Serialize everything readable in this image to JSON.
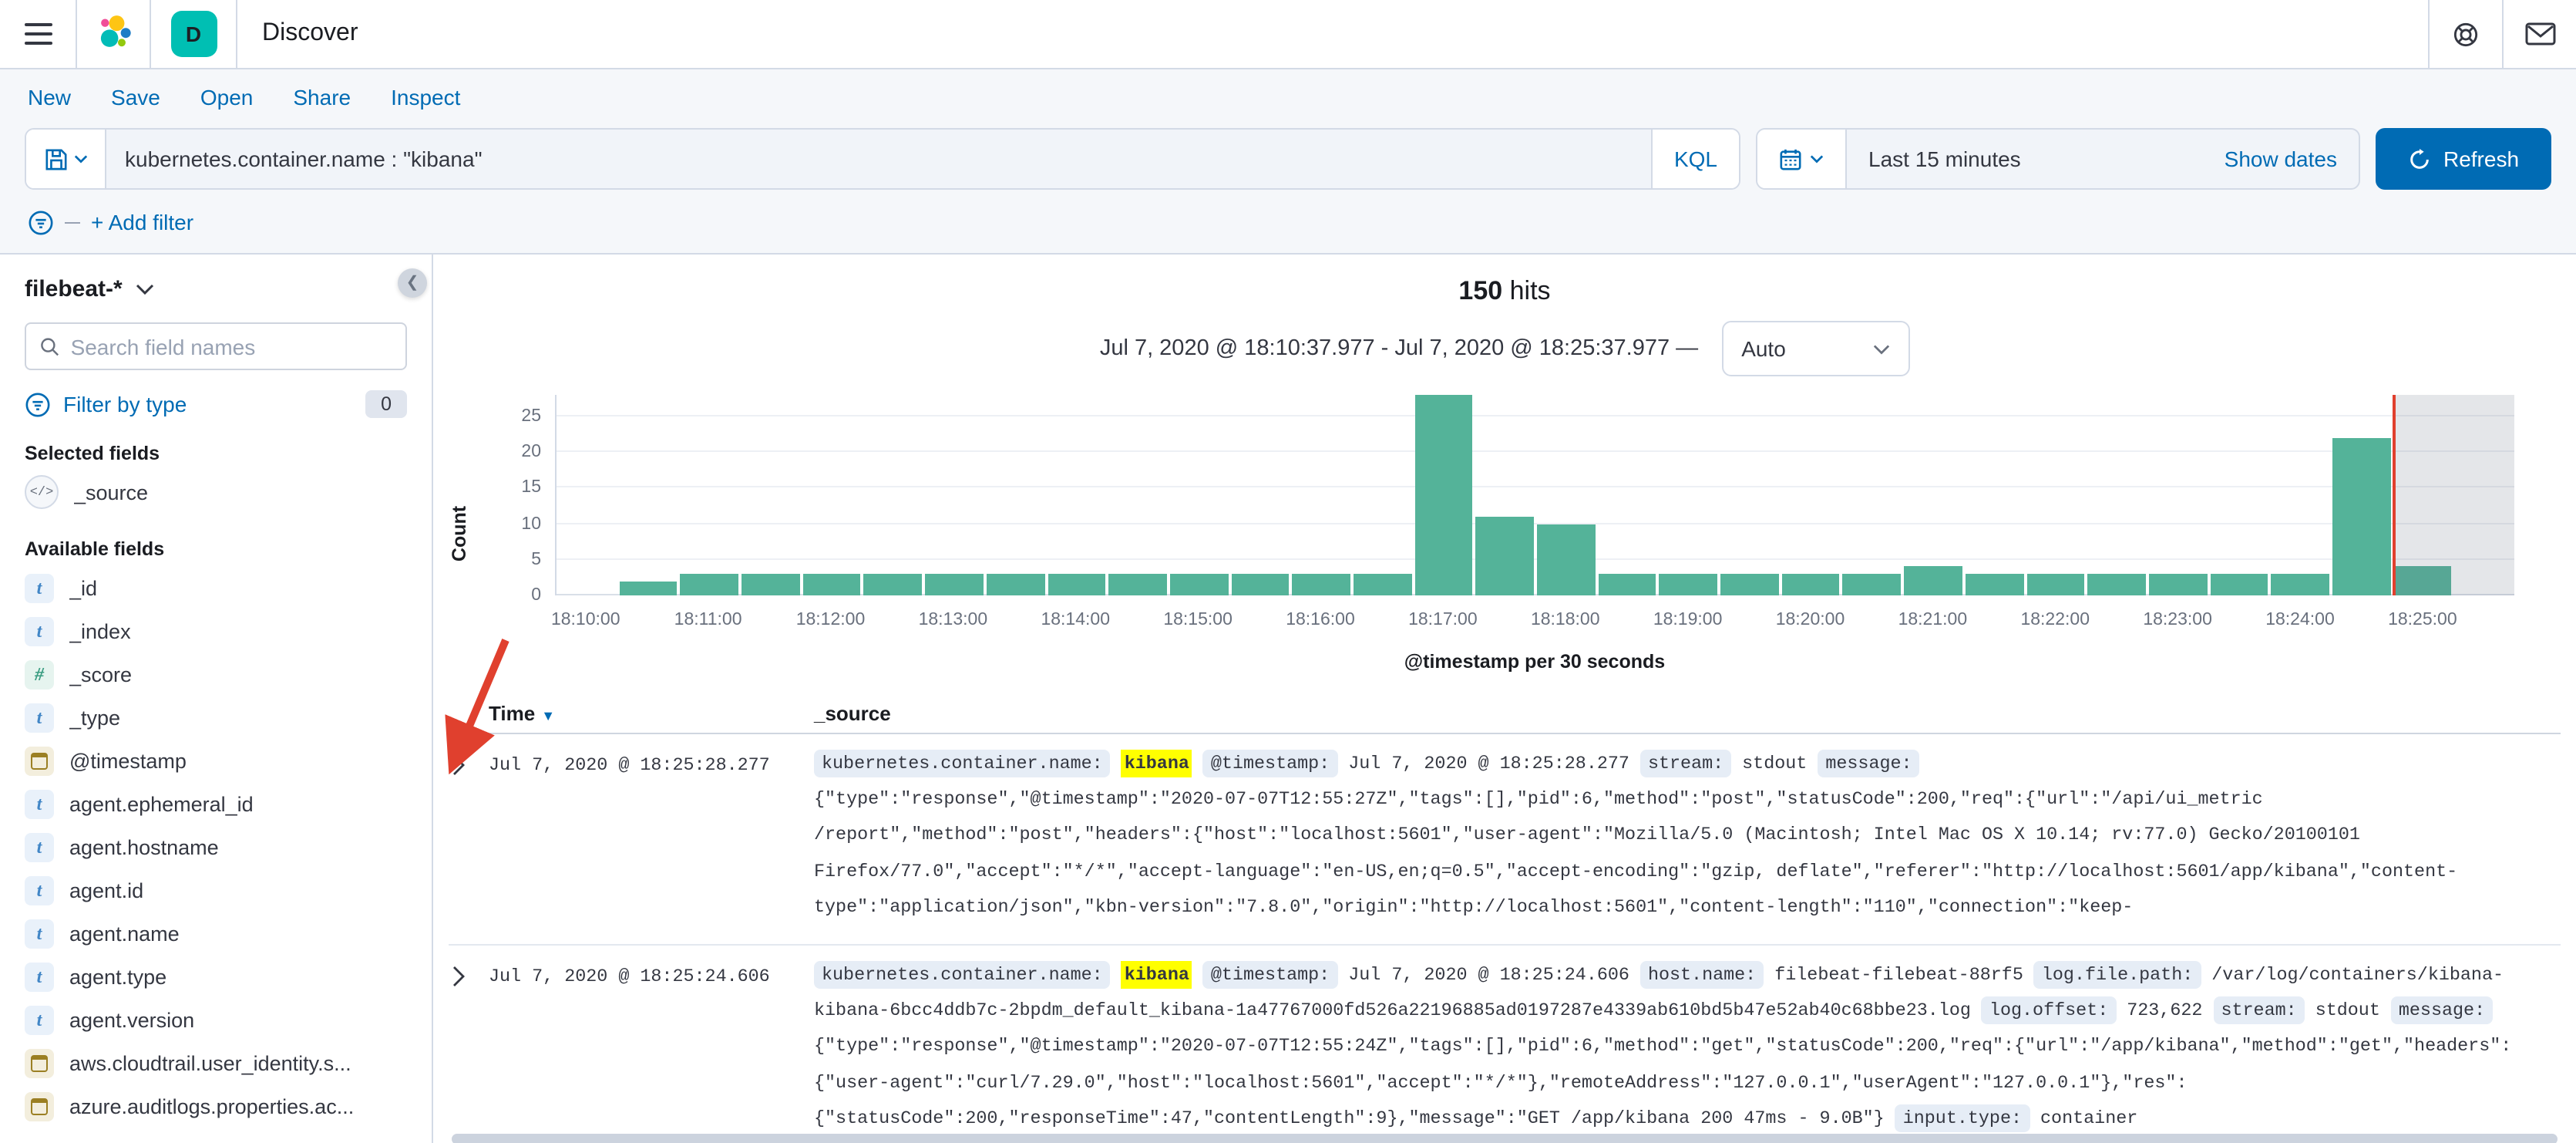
{
  "top_bar": {
    "title": "Discover",
    "badge_letter": "D"
  },
  "toolbar": {
    "menu_items": [
      "New",
      "Save",
      "Open",
      "Share",
      "Inspect"
    ]
  },
  "query_bar": {
    "query": "kubernetes.container.name : \"kibana\"",
    "language_label": "KQL",
    "time_range": "Last 15 minutes",
    "show_dates_label": "Show dates",
    "refresh_label": "Refresh",
    "add_filter_label": "+ Add filter"
  },
  "sidebar": {
    "index_pattern": "filebeat-*",
    "search_placeholder": "Search field names",
    "filter_by_type_label": "Filter by type",
    "filter_count": "0",
    "selected_heading": "Selected fields",
    "selected_fields": [
      {
        "name": "_source",
        "type": "source"
      }
    ],
    "available_heading": "Available fields",
    "available_fields": [
      {
        "name": "_id",
        "type": "string"
      },
      {
        "name": "_index",
        "type": "string"
      },
      {
        "name": "_score",
        "type": "number"
      },
      {
        "name": "_type",
        "type": "string"
      },
      {
        "name": "@timestamp",
        "type": "date"
      },
      {
        "name": "agent.ephemeral_id",
        "type": "string"
      },
      {
        "name": "agent.hostname",
        "type": "string"
      },
      {
        "name": "agent.id",
        "type": "string"
      },
      {
        "name": "agent.name",
        "type": "string"
      },
      {
        "name": "agent.type",
        "type": "string"
      },
      {
        "name": "agent.version",
        "type": "string"
      },
      {
        "name": "aws.cloudtrail.user_identity.s...",
        "type": "date"
      },
      {
        "name": "azure.auditlogs.properties.ac...",
        "type": "date"
      }
    ]
  },
  "results": {
    "hits_count": "150",
    "hits_label": "hits",
    "time_range_display": "Jul 7, 2020 @ 18:10:37.977 - Jul 7, 2020 @ 18:25:37.977 —",
    "interval_value": "Auto"
  },
  "chart_data": {
    "type": "bar",
    "title": "",
    "xlabel": "@timestamp per 30 seconds",
    "ylabel": "Count",
    "legend": "off",
    "grid": "on",
    "y_ticks": [
      0,
      5,
      10,
      15,
      20,
      25
    ],
    "ylim": [
      0,
      28
    ],
    "bucket_seconds": 30,
    "x": [
      "18:10:00",
      "18:10:30",
      "18:11:00",
      "18:11:30",
      "18:12:00",
      "18:12:30",
      "18:13:00",
      "18:13:30",
      "18:14:00",
      "18:14:30",
      "18:15:00",
      "18:15:30",
      "18:16:00",
      "18:16:30",
      "18:17:00",
      "18:17:30",
      "18:18:00",
      "18:18:30",
      "18:19:00",
      "18:19:30",
      "18:20:00",
      "18:20:30",
      "18:21:00",
      "18:21:30",
      "18:22:00",
      "18:22:30",
      "18:23:00",
      "18:23:30",
      "18:24:00",
      "18:24:30",
      "18:25:00",
      "18:25:30"
    ],
    "values": [
      0,
      2,
      3,
      3,
      3,
      3,
      3,
      3,
      3,
      3,
      3,
      3,
      3,
      3,
      28,
      11,
      10,
      3,
      3,
      3,
      3,
      3,
      4,
      3,
      3,
      3,
      3,
      3,
      3,
      22,
      4,
      0
    ],
    "bar_color": "#54b399",
    "current_time_marker": {
      "position_slot": 30,
      "color": "#e0402e"
    },
    "incomplete_bucket_overlay": true
  },
  "table": {
    "columns": [
      "Time",
      "_source"
    ],
    "rows": [
      {
        "time": "Jul 7, 2020 @ 18:25:28.277",
        "lines": [
          [
            {
              "k": "badge",
              "v": "kubernetes.container.name:"
            },
            {
              "k": "hl",
              "v": "kibana"
            },
            {
              "k": "badge",
              "v": "@timestamp:"
            },
            {
              "k": "text",
              "v": "Jul 7, 2020 @ 18:25:28.277"
            },
            {
              "k": "badge",
              "v": "stream:"
            },
            {
              "k": "text",
              "v": "stdout"
            },
            {
              "k": "badge",
              "v": "message:"
            }
          ],
          [
            {
              "k": "text",
              "v": "{\"type\":\"response\",\"@timestamp\":\"2020-07-07T12:55:27Z\",\"tags\":[],\"pid\":6,\"method\":\"post\",\"statusCode\":200,\"req\":{\"url\":\"/api/ui_metric"
            }
          ],
          [
            {
              "k": "text",
              "v": "/report\",\"method\":\"post\",\"headers\":{\"host\":\"localhost:5601\",\"user-agent\":\"Mozilla/5.0 (Macintosh; Intel Mac OS X 10.14; rv:77.0) Gecko/20100101"
            }
          ],
          [
            {
              "k": "text",
              "v": "Firefox/77.0\",\"accept\":\"*/*\",\"accept-language\":\"en-US,en;q=0.5\",\"accept-encoding\":\"gzip, deflate\",\"referer\":\"http://localhost:5601/app/kibana\",\"content-"
            }
          ],
          [
            {
              "k": "text",
              "v": "type\":\"application/json\",\"kbn-version\":\"7.8.0\",\"origin\":\"http://localhost:5601\",\"content-length\":\"110\",\"connection\":\"keep-"
            }
          ]
        ]
      },
      {
        "time": "Jul 7, 2020 @ 18:25:24.606",
        "lines": [
          [
            {
              "k": "badge",
              "v": "kubernetes.container.name:"
            },
            {
              "k": "hl",
              "v": "kibana"
            },
            {
              "k": "badge",
              "v": "@timestamp:"
            },
            {
              "k": "text",
              "v": "Jul 7, 2020 @ 18:25:24.606"
            },
            {
              "k": "badge",
              "v": "host.name:"
            },
            {
              "k": "text",
              "v": "filebeat-filebeat-88rf5"
            },
            {
              "k": "badge",
              "v": "log.file.path:"
            },
            {
              "k": "text",
              "v": "/var/log/containers/kibana-"
            }
          ],
          [
            {
              "k": "text",
              "v": "kibana-6bcc4ddb7c-2bpdm_default_kibana-1a47767000fd526a22196885ad0197287e4339ab610bd5b47e52ab40c68bbe23.log"
            },
            {
              "k": "badge",
              "v": "log.offset:"
            },
            {
              "k": "text",
              "v": "723,622"
            },
            {
              "k": "badge",
              "v": "stream:"
            },
            {
              "k": "text",
              "v": "stdout"
            },
            {
              "k": "badge",
              "v": "message:"
            }
          ],
          [
            {
              "k": "text",
              "v": "{\"type\":\"response\",\"@timestamp\":\"2020-07-07T12:55:24Z\",\"tags\":[],\"pid\":6,\"method\":\"get\",\"statusCode\":200,\"req\":{\"url\":\"/app/kibana\",\"method\":\"get\",\"headers\":"
            }
          ],
          [
            {
              "k": "text",
              "v": "{\"user-agent\":\"curl/7.29.0\",\"host\":\"localhost:5601\",\"accept\":\"*/*\"},\"remoteAddress\":\"127.0.0.1\",\"userAgent\":\"127.0.0.1\"},\"res\":"
            }
          ],
          [
            {
              "k": "text",
              "v": "{\"statusCode\":200,\"responseTime\":47,\"contentLength\":9},\"message\":\"GET /app/kibana 200 47ms - 9.0B\"}"
            },
            {
              "k": "badge",
              "v": "input.type:"
            },
            {
              "k": "text",
              "v": "container"
            }
          ]
        ]
      }
    ]
  },
  "colors": {
    "accent": "#006bb4",
    "bar": "#54b399",
    "highlight": "#ffff00",
    "time_marker": "#e0402e",
    "app_badge": "#00bfb3"
  }
}
